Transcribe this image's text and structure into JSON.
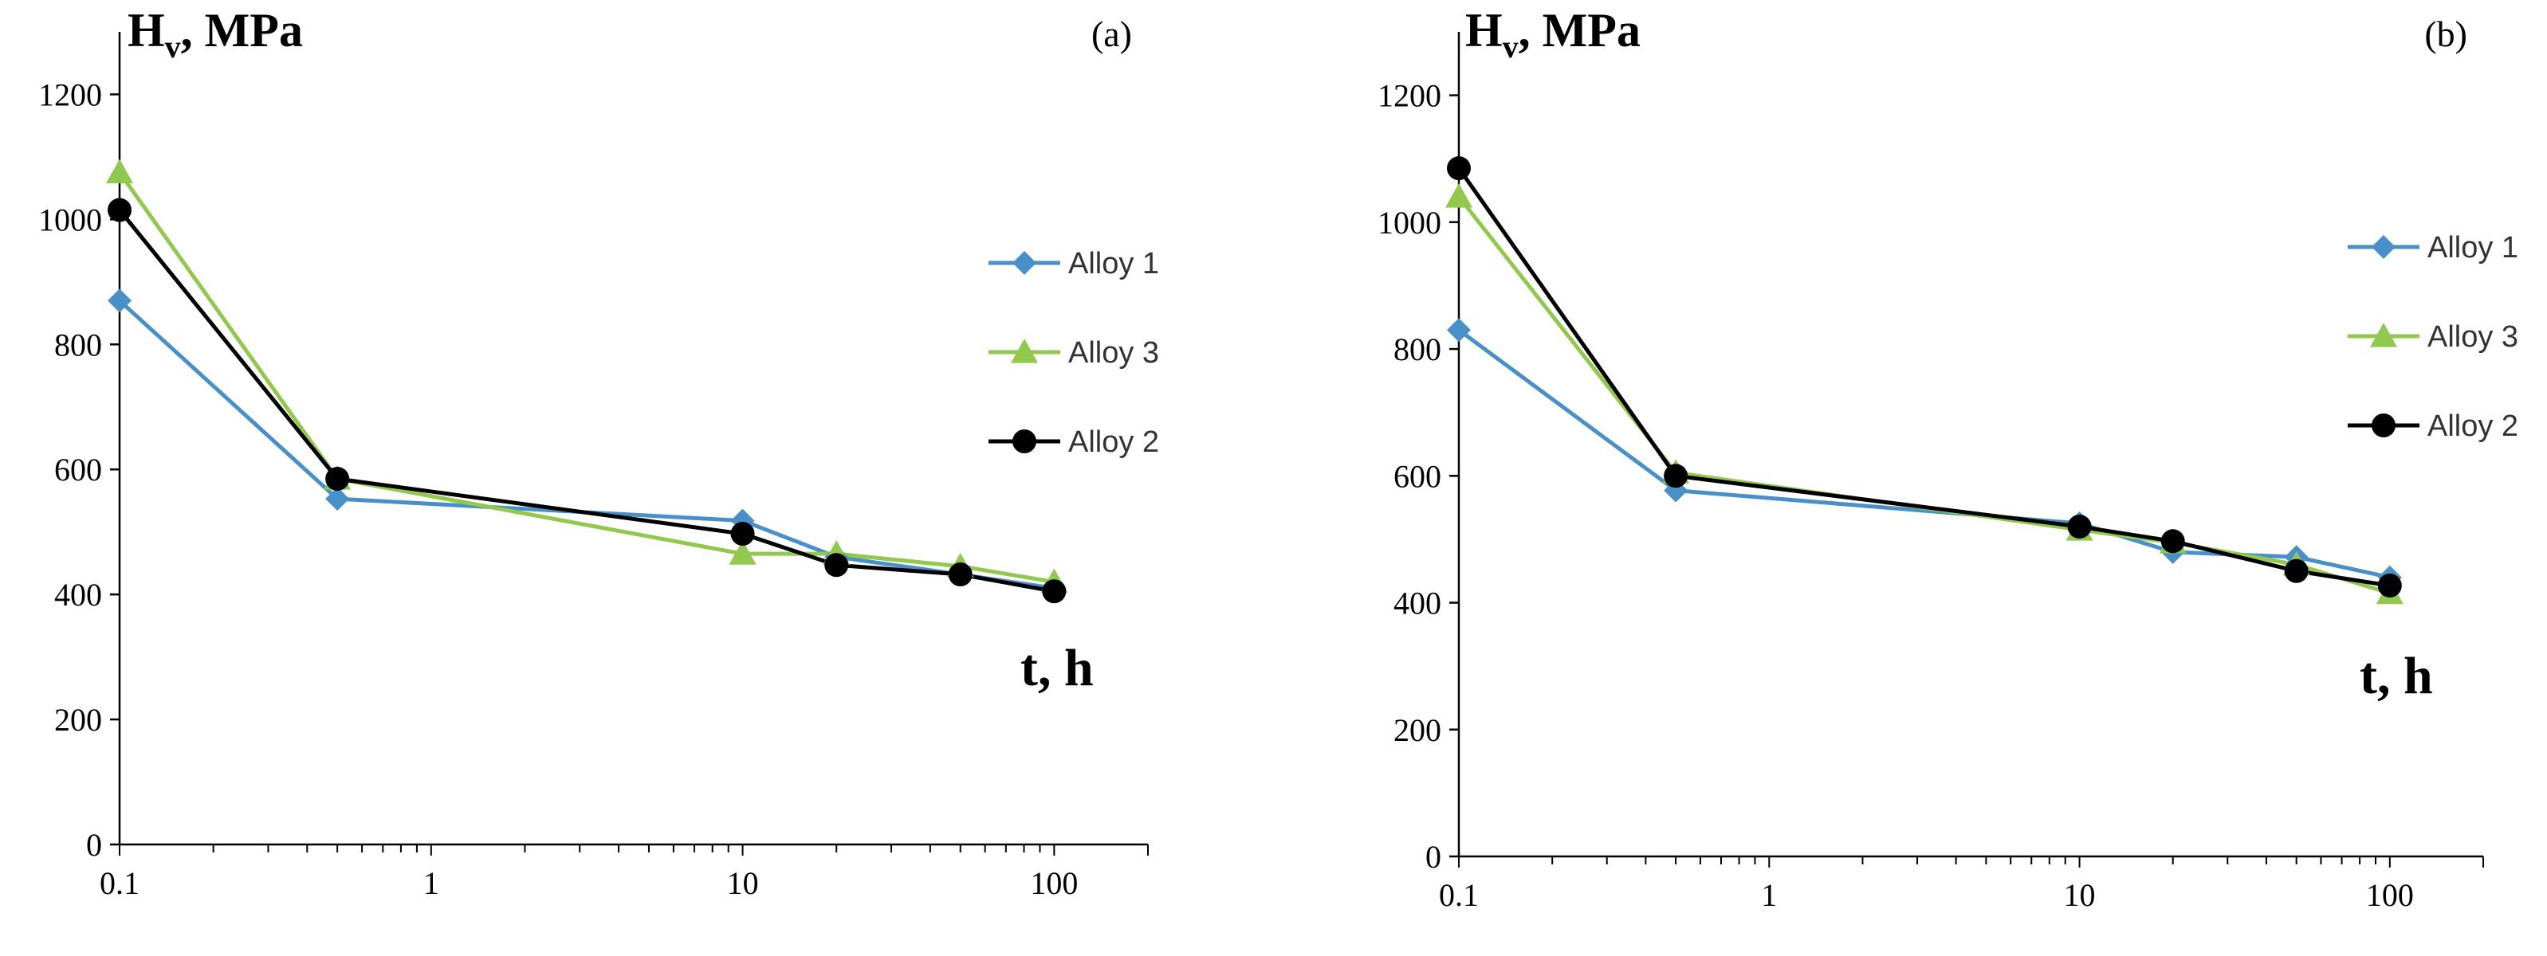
{
  "chart_data": [
    {
      "type": "line",
      "panel_label": "(a)",
      "ylabel_main": "H",
      "ylabel_sub": "v",
      "ylabel_rest": ", MPa",
      "xlabel": "t, h",
      "xscale": "log",
      "xlim": [
        0.1,
        200
      ],
      "ylim": [
        0,
        1300
      ],
      "yticks": [
        0,
        200,
        400,
        600,
        800,
        1000,
        1200
      ],
      "ytick_labels": [
        "0",
        "200",
        "400",
        "600",
        "800",
        "1000",
        "1200"
      ],
      "xticks": [
        0.1,
        1,
        10,
        100
      ],
      "xtick_labels": [
        "0.1",
        "1",
        "10",
        "100"
      ],
      "legend_position": "right",
      "x": [
        0.1,
        0.5,
        10,
        20,
        50,
        100
      ],
      "series": [
        {
          "name": "Alloy 1",
          "color": "#4a90c8",
          "marker": "diamond",
          "values": [
            870,
            553,
            518,
            460,
            432,
            410
          ]
        },
        {
          "name": "Alloy 3",
          "color": "#92c84e",
          "marker": "triangle",
          "values": [
            1075,
            585,
            465,
            465,
            445,
            420
          ]
        },
        {
          "name": "Alloy 2",
          "color": "#000000",
          "marker": "circle",
          "values": [
            1015,
            585,
            497,
            447,
            432,
            405
          ]
        }
      ]
    },
    {
      "type": "line",
      "panel_label": "(b)",
      "ylabel_main": "H",
      "ylabel_sub": "v",
      "ylabel_rest": ", MPa",
      "xlabel": "t, h",
      "xscale": "log",
      "xlim": [
        0.1,
        200
      ],
      "ylim": [
        0,
        1300
      ],
      "yticks": [
        0,
        200,
        400,
        600,
        800,
        1000,
        1200
      ],
      "ytick_labels": [
        "0",
        "200",
        "400",
        "600",
        "800",
        "1000",
        "1200"
      ],
      "xticks": [
        0.1,
        1,
        10,
        100
      ],
      "xtick_labels": [
        "0.1",
        "1",
        "10",
        "100"
      ],
      "legend_position": "right",
      "x": [
        0.1,
        0.5,
        10,
        20,
        50,
        100
      ],
      "series": [
        {
          "name": "Alloy 1",
          "color": "#4a90c8",
          "marker": "diamond",
          "values": [
            830,
            577,
            525,
            480,
            472,
            440
          ]
        },
        {
          "name": "Alloy 3",
          "color": "#92c84e",
          "marker": "triangle",
          "values": [
            1040,
            605,
            515,
            495,
            460,
            415
          ]
        },
        {
          "name": "Alloy 2",
          "color": "#000000",
          "marker": "circle",
          "values": [
            1085,
            600,
            520,
            497,
            450,
            427
          ]
        }
      ]
    }
  ]
}
